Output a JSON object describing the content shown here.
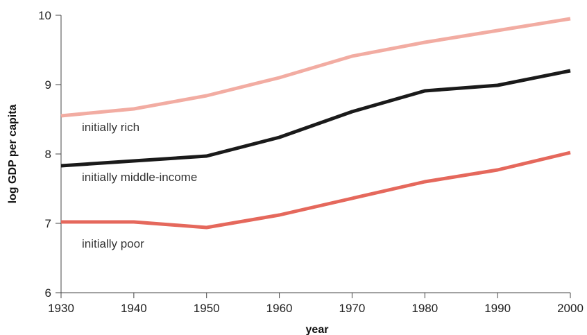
{
  "chart_data": {
    "type": "line",
    "title": "",
    "xlabel": "year",
    "ylabel": "log GDP per capita",
    "x": [
      1930,
      1940,
      1950,
      1960,
      1970,
      1980,
      1990,
      2000
    ],
    "xlim": [
      1930,
      2000
    ],
    "ylim": [
      6,
      10
    ],
    "xticks": [
      "1930",
      "1940",
      "1950",
      "1960",
      "1970",
      "1980",
      "1990",
      "2000"
    ],
    "yticks": [
      "6",
      "7",
      "8",
      "9",
      "10"
    ],
    "grid": false,
    "legend": "inline labels",
    "series": [
      {
        "name": "initially rich",
        "color": "#f2aca2",
        "values": [
          8.55,
          8.65,
          8.84,
          9.1,
          9.41,
          9.61,
          9.78,
          9.95
        ]
      },
      {
        "name": "initially middle-income",
        "color": "#1a1a1a",
        "values": [
          7.83,
          7.9,
          7.97,
          8.24,
          8.61,
          8.91,
          8.99,
          9.2
        ]
      },
      {
        "name": "initially poor",
        "color": "#e5685c",
        "values": [
          7.02,
          7.02,
          6.94,
          7.12,
          7.36,
          7.6,
          7.77,
          8.02
        ]
      }
    ]
  }
}
